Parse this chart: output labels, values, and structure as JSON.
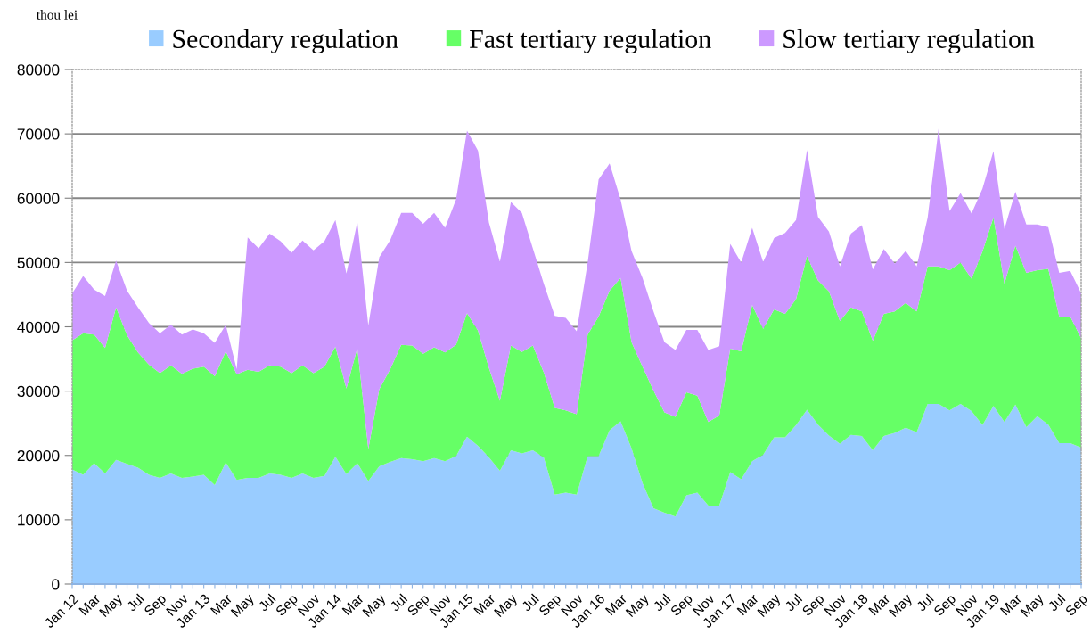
{
  "chart_data": {
    "type": "area",
    "stacked": true,
    "ylabel": "thou lei",
    "categories": [
      "Jan 12",
      null,
      "Mar",
      null,
      "May",
      null,
      "Jul",
      null,
      "Sep",
      null,
      "Nov",
      null,
      "Jan 13",
      null,
      "Mar",
      null,
      "May",
      null,
      "Jul",
      null,
      "Sep",
      null,
      "Nov",
      null,
      "Jan 14",
      null,
      "Mar",
      null,
      "May",
      null,
      "Jul",
      null,
      "Sep",
      null,
      "Nov",
      null,
      "Jan 15",
      null,
      "Mar",
      null,
      "May",
      null,
      "Jul",
      null,
      "Sep",
      null,
      "Nov",
      null,
      "Jan 16",
      null,
      "Mar",
      null,
      "May",
      null,
      "Jul",
      null,
      "Sep",
      null,
      "Nov",
      null,
      "Jan 17",
      null,
      "Mar",
      null,
      "May",
      null,
      "Jul",
      null,
      "Sep",
      null,
      "Nov",
      null,
      "Jan 18",
      null,
      "Mar",
      null,
      "May",
      null,
      "Jul",
      null,
      "Sep",
      null,
      "Nov",
      null,
      "Jan 19",
      null,
      "Mar",
      null,
      "May",
      null,
      "Jul",
      null,
      "Sep"
    ],
    "series": [
      {
        "name": "Secondary regulation",
        "color": "#99ccff",
        "values": [
          17800,
          17000,
          18800,
          17200,
          19300,
          18700,
          18100,
          17000,
          16500,
          17200,
          16500,
          16700,
          17000,
          15400,
          18900,
          16200,
          16500,
          16500,
          17200,
          17000,
          16500,
          17200,
          16500,
          16800,
          19800,
          17100,
          18800,
          16000,
          18300,
          19000,
          19600,
          19400,
          19100,
          19600,
          19100,
          19900,
          22900,
          21500,
          19700,
          17600,
          20800,
          20300,
          20800,
          19700,
          13900,
          14200,
          13900,
          19900,
          19900,
          23900,
          25300,
          21100,
          15700,
          11800,
          11100,
          10500,
          13800,
          14200,
          12200,
          12200,
          17400,
          16300,
          19100,
          20100,
          22800,
          22800,
          24700,
          27100,
          24800,
          23100,
          21800,
          23200,
          23000,
          20800,
          23000,
          23500,
          24300,
          23600,
          28000,
          28000,
          27000,
          28000,
          26900,
          24700,
          27700,
          25200,
          27900,
          24400,
          26100,
          24800,
          21900,
          21900,
          21200
        ]
      },
      {
        "name": "Fast tertiary regulation",
        "color": "#66ff66",
        "values": [
          20100,
          22000,
          20000,
          19500,
          23700,
          20000,
          17900,
          17100,
          16300,
          16800,
          16200,
          16800,
          16800,
          16900,
          17300,
          16400,
          16800,
          16500,
          16800,
          16800,
          16300,
          16800,
          16300,
          17000,
          17100,
          13300,
          17900,
          5000,
          12000,
          14400,
          17600,
          17700,
          16700,
          17200,
          16900,
          17300,
          19200,
          17900,
          13900,
          10900,
          16300,
          15800,
          16300,
          13200,
          13500,
          12800,
          12500,
          18900,
          21700,
          21700,
          22300,
          16500,
          18100,
          18300,
          15600,
          15500,
          16000,
          15100,
          13000,
          14000,
          19200,
          19900,
          24300,
          19600,
          19900,
          19200,
          19600,
          23900,
          22400,
          22400,
          19100,
          19800,
          19400,
          17000,
          19000,
          18900,
          19400,
          18800,
          21400,
          21400,
          21800,
          22000,
          20600,
          27000,
          29300,
          21500,
          24700,
          24000,
          22700,
          24200,
          19700,
          19700,
          17000
        ]
      },
      {
        "name": "Slow tertiary regulation",
        "color": "#cc99ff",
        "values": [
          7300,
          8900,
          7000,
          8100,
          7300,
          6900,
          7000,
          6500,
          6200,
          6300,
          6100,
          6100,
          5200,
          5200,
          4100,
          800,
          20600,
          19200,
          20500,
          19500,
          18700,
          19400,
          19100,
          19500,
          19700,
          17900,
          19600,
          19200,
          20500,
          20100,
          20500,
          20600,
          20200,
          20900,
          19400,
          22600,
          28400,
          28000,
          22600,
          21600,
          22300,
          21600,
          15100,
          13800,
          14300,
          14400,
          12900,
          11200,
          21300,
          19800,
          12200,
          14200,
          13800,
          12300,
          10900,
          10400,
          9700,
          10200,
          11200,
          10800,
          16300,
          13800,
          12000,
          10400,
          11100,
          12600,
          12300,
          16500,
          9900,
          9300,
          8500,
          11500,
          13400,
          11100,
          10100,
          7400,
          8100,
          7000,
          7600,
          21500,
          9200,
          10800,
          10100,
          9800,
          10300,
          8500,
          8400,
          7500,
          7100,
          6500,
          6800,
          7100,
          7000
        ]
      }
    ],
    "ylim": [
      0,
      80000
    ],
    "yticks": [
      0,
      10000,
      20000,
      30000,
      40000,
      50000,
      60000,
      70000,
      80000
    ],
    "grid": "y",
    "legend": "top"
  }
}
